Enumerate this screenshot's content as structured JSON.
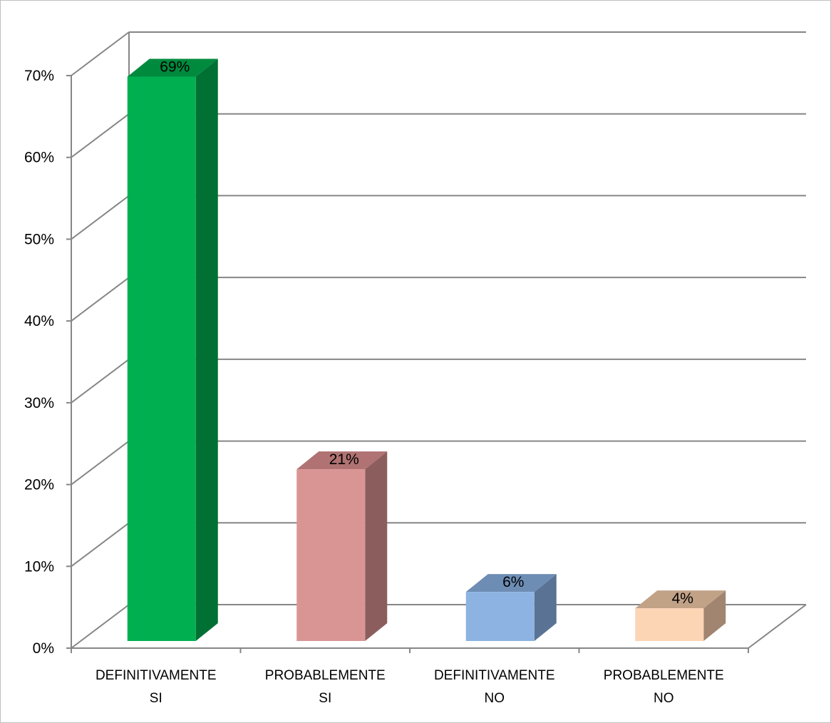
{
  "chart_data": {
    "type": "bar",
    "style": "3d-column",
    "title": "",
    "xlabel": "",
    "ylabel": "",
    "categories": [
      [
        "DEFINITIVAMENTE",
        "SI"
      ],
      [
        "PROBABLEMENTE",
        "SI"
      ],
      [
        "DEFINITIVAMENTE",
        "NO"
      ],
      [
        "PROBABLEMENTE",
        "NO"
      ]
    ],
    "values": [
      69,
      21,
      6,
      4
    ],
    "data_labels": [
      "69%",
      "21%",
      "6%",
      "4%"
    ],
    "ylim": [
      0,
      70
    ],
    "y_ticks": [
      0,
      10,
      20,
      30,
      40,
      50,
      60,
      70
    ],
    "y_tick_labels": [
      "0%",
      "10%",
      "20%",
      "30%",
      "40%",
      "50%",
      "60%",
      "70%"
    ],
    "bar_colors": [
      {
        "front": "#00b050",
        "side": "#007033",
        "top": "#008a3e"
      },
      {
        "front": "#d99594",
        "side": "#8c5d5d",
        "top": "#b07272"
      },
      {
        "front": "#8db3e2",
        "side": "#5a7394",
        "top": "#6d8db5"
      },
      {
        "front": "#fcd5b4",
        "side": "#a18570",
        "top": "#c2a287"
      }
    ],
    "grid": true,
    "legend": "none"
  }
}
